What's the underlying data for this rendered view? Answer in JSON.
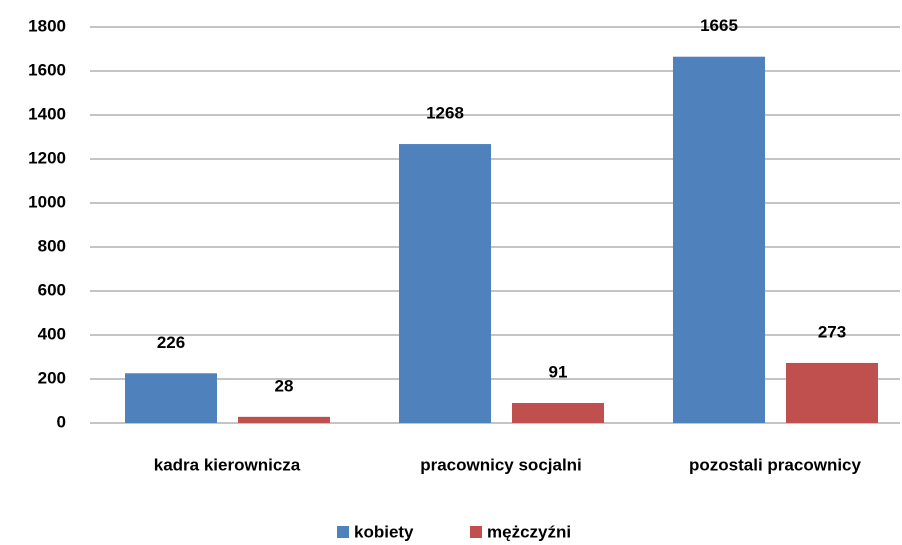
{
  "chart_data": {
    "type": "bar",
    "categories": [
      "kadra kierownicza",
      "pracownicy socjalni",
      "pozostali pracownicy"
    ],
    "series": [
      {
        "name": "kobiety",
        "color": "#4f81bd",
        "values": [
          226,
          1268,
          1665
        ]
      },
      {
        "name": "mężczyźni",
        "color": "#c0504d",
        "values": [
          28,
          91,
          273
        ]
      }
    ],
    "ylim": [
      0,
      1800
    ],
    "yticks": [
      0,
      200,
      400,
      600,
      800,
      1000,
      1200,
      1400,
      1600,
      1800
    ],
    "grid": true,
    "legend": "bottom"
  }
}
